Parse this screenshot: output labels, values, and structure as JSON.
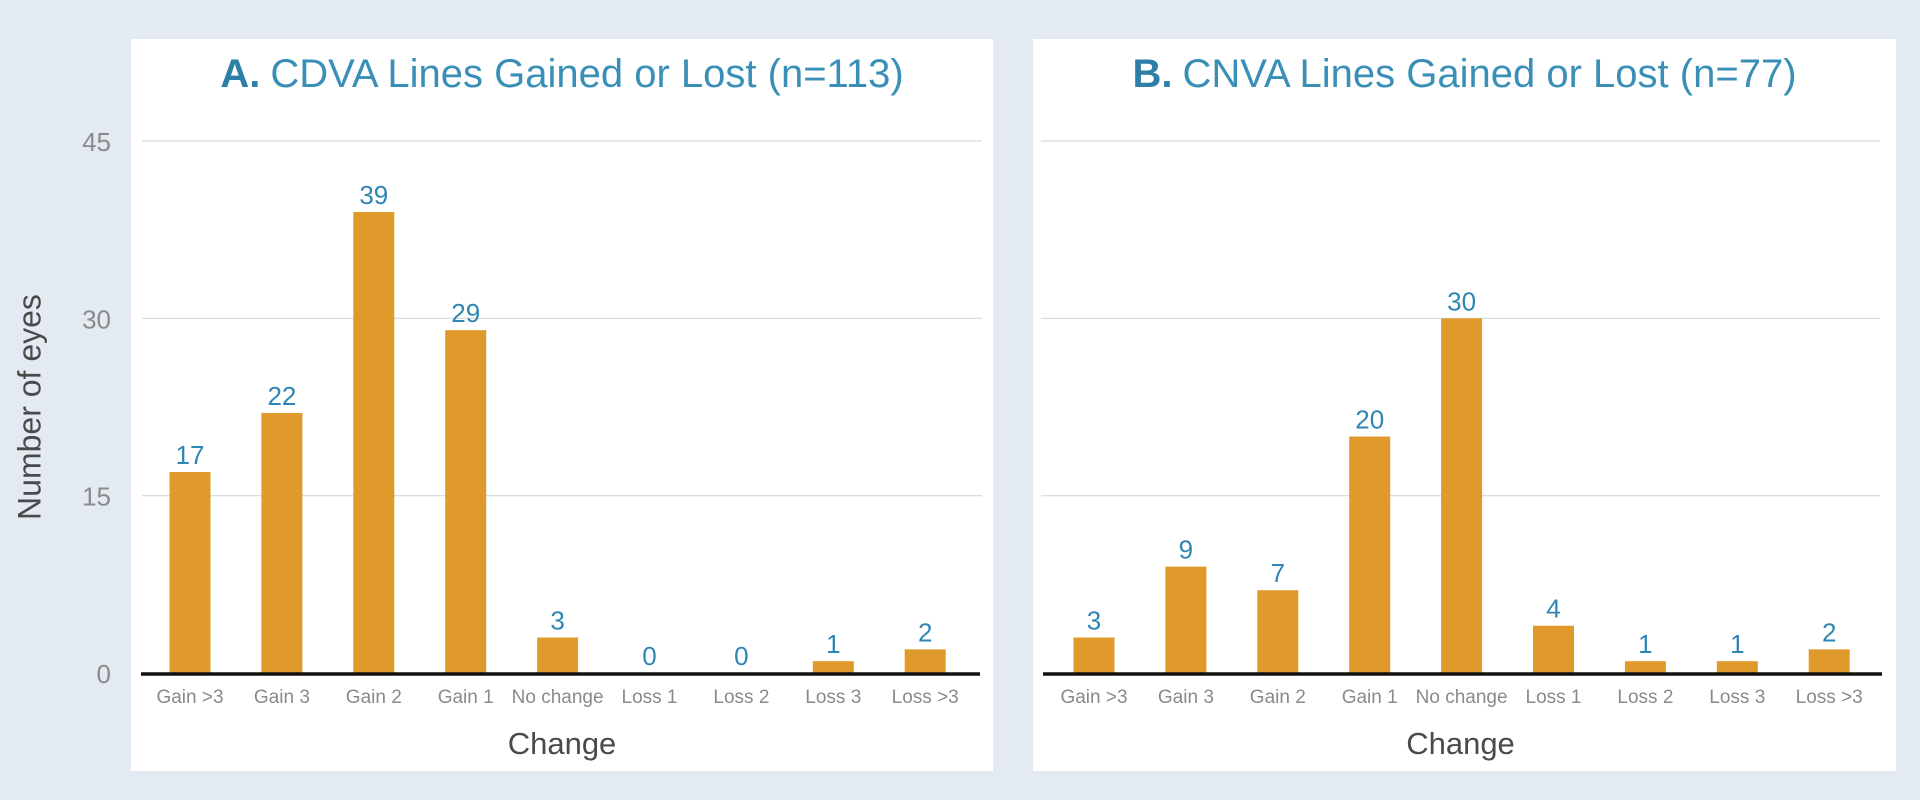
{
  "chart_data": [
    {
      "type": "bar",
      "panel_letter": "A.",
      "title": "CDVA Lines Gained or Lost (n=113)",
      "xlabel": "Change",
      "ylabel": "Number of eyes",
      "categories": [
        "Gain >3",
        "Gain 3",
        "Gain 2",
        "Gain 1",
        "No change",
        "Loss 1",
        "Loss 2",
        "Loss 3",
        "Loss >3"
      ],
      "values": [
        17,
        22,
        39,
        29,
        3,
        0,
        0,
        1,
        2
      ],
      "data_labels": [
        "17",
        "22",
        "39",
        "29",
        "3",
        "0",
        "0",
        "1",
        "2"
      ],
      "ylim": [
        0,
        45
      ],
      "yticks": [
        0,
        15,
        30,
        45
      ],
      "grid": true,
      "legend": "none"
    },
    {
      "type": "bar",
      "panel_letter": "B.",
      "title": "CNVA Lines Gained or Lost (n=77)",
      "xlabel": "Change",
      "ylabel": "",
      "categories": [
        "Gain >3",
        "Gain 3",
        "Gain 2",
        "Gain 1",
        "No change",
        "Loss 1",
        "Loss 2",
        "Loss 3",
        "Loss >3"
      ],
      "values": [
        3,
        9,
        7,
        20,
        30,
        4,
        1,
        1,
        2
      ],
      "data_labels": [
        "3",
        "9",
        "7",
        "20",
        "30",
        "4",
        "1",
        "1",
        "2"
      ],
      "ylim": [
        0,
        45
      ],
      "yticks": [
        0,
        15,
        30,
        45
      ],
      "grid": true,
      "legend": "none"
    }
  ],
  "colors": {
    "bar": "#e0992b",
    "title": "#3a8fb7",
    "data_label": "#2e86b4",
    "tick_label": "#8a8a8a",
    "axis_label": "#4a4a4a",
    "gridline": "#d5d9de",
    "baseline": "#111111"
  }
}
